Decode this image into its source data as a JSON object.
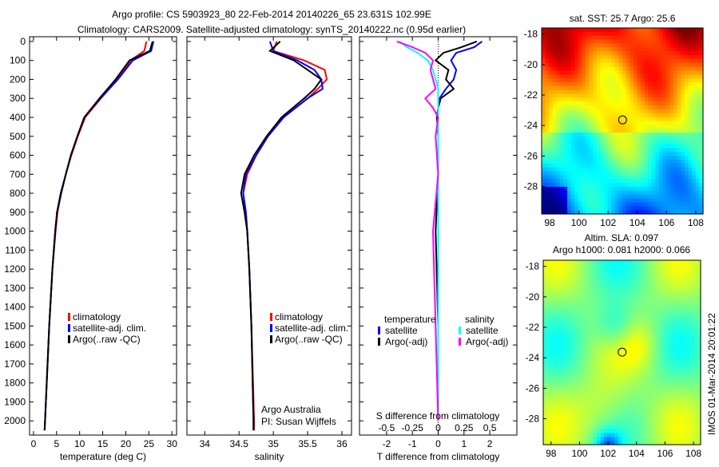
{
  "title_line1": "Argo profile: CS 5903923_80 22-Feb-2014 20140226_65 23.631S 102.99E",
  "title_line2": "Climatology: CARS2009. Satellite-adjusted climatology: synTS_20140222.nc (0.95d earlier)",
  "colors": {
    "climatology": "#ff0000",
    "satellite": "#0000ff",
    "argo": "#000000",
    "sal_satellite": "#00ffff",
    "sal_argo": "#ff00ff"
  },
  "chart_data": [
    {
      "type": "line",
      "name": "temperature",
      "xlabel": "temperature (deg C)",
      "ylabel": "",
      "xlim": [
        -0.85,
        31
      ],
      "ylim": [
        2075,
        -25
      ],
      "xticks": [
        0,
        5,
        10,
        15,
        20,
        25,
        30
      ],
      "yticks": [
        0,
        100,
        200,
        300,
        400,
        500,
        600,
        700,
        800,
        900,
        1000,
        1100,
        1200,
        1300,
        1400,
        1500,
        1600,
        1700,
        1800,
        1900,
        2000
      ],
      "depth": [
        0,
        50,
        100,
        200,
        300,
        400,
        500,
        600,
        700,
        800,
        900,
        1000,
        1200,
        1500,
        2000,
        2050
      ],
      "series": [
        {
          "name": "climatology",
          "values": [
            24.5,
            24,
            21,
            18.2,
            14.6,
            11.2,
            9.6,
            8.2,
            7,
            6,
            5.2,
            4.8,
            4.1,
            3.4,
            2.5,
            2.4
          ]
        },
        {
          "name": "satellite-adj. clim.",
          "values": [
            26,
            25.5,
            21.5,
            18.3,
            14.5,
            11,
            9.5,
            8.1,
            7,
            6,
            5.1,
            4.7,
            4.1,
            3.4,
            2.5,
            2.4
          ]
        },
        {
          "name": "Argo(..raw -QC)",
          "values": [
            25.8,
            25.2,
            20.8,
            17.8,
            14.3,
            11,
            9.5,
            8.1,
            7,
            5.9,
            5.1,
            4.7,
            4.1,
            3.4,
            2.5,
            2.4
          ]
        }
      ],
      "legend": [
        "climatology",
        "satellite-adj. clim.",
        "Argo(..raw -QC)"
      ]
    },
    {
      "type": "line",
      "name": "salinity",
      "xlabel": "salinity",
      "xlim": [
        33.74,
        36.14
      ],
      "ylim": [
        2075,
        -25
      ],
      "xticks": [
        34,
        34.5,
        35,
        35.5,
        36
      ],
      "depth": [
        0,
        50,
        100,
        150,
        200,
        250,
        300,
        400,
        500,
        600,
        700,
        800,
        900,
        1000,
        1200,
        1500,
        2000,
        2050
      ],
      "series": [
        {
          "name": "climatology",
          "values": [
            35.05,
            35.0,
            35.45,
            35.75,
            35.78,
            35.65,
            35.5,
            35.15,
            34.92,
            34.75,
            34.62,
            34.56,
            34.6,
            34.62,
            34.65,
            34.68,
            34.72,
            34.72
          ]
        },
        {
          "name": "satellite-adj. clim.",
          "values": [
            34.95,
            35.0,
            35.35,
            35.6,
            35.7,
            35.72,
            35.5,
            35.15,
            34.92,
            34.75,
            34.6,
            34.56,
            34.6,
            34.62,
            34.65,
            34.68,
            34.71,
            34.71
          ]
        },
        {
          "name": "Argo(..raw -QC)",
          "values": [
            35.1,
            34.95,
            35.3,
            35.5,
            35.7,
            35.6,
            35.45,
            35.12,
            34.9,
            34.72,
            34.58,
            34.53,
            34.58,
            34.62,
            34.65,
            34.68,
            34.71,
            34.71
          ]
        }
      ],
      "legend": [
        "climatology",
        "satellite-adj. clim.",
        "Argo(..raw -QC)"
      ],
      "annotation": [
        "Argo Australia",
        "PI: Susan Wijffels"
      ]
    },
    {
      "type": "line",
      "name": "differences",
      "xlabel": "T difference from climatology",
      "xlabel2": "S difference from climatology",
      "xlim": [
        -3.05,
        3.05
      ],
      "ylim": [
        2075,
        -25
      ],
      "xticks": [
        -2,
        -1,
        0,
        1,
        2
      ],
      "xticks2": [
        "-0.5",
        "-0.25",
        "0",
        "0.25",
        "0.5"
      ],
      "depth": [
        0,
        30,
        60,
        100,
        150,
        200,
        250,
        300,
        350,
        400,
        500,
        700,
        1000,
        1500,
        2000
      ],
      "series": [
        {
          "name": "temperature satellite",
          "values": [
            1.7,
            1.4,
            0.7,
            0.5,
            0.7,
            0.6,
            0.3,
            0.05,
            0,
            0,
            0,
            0,
            0,
            0,
            0
          ]
        },
        {
          "name": "temperature Argo(-adj)",
          "values": [
            1.5,
            0.9,
            0.2,
            -0.1,
            0.4,
            0.3,
            0.6,
            0.1,
            0,
            -0.05,
            0,
            0,
            -0.1,
            0,
            0
          ]
        },
        {
          "name": "salinity satellite",
          "values": [
            -1.5,
            -1.2,
            -0.8,
            -0.4,
            -0.2,
            -0.1,
            0,
            0,
            0,
            0,
            0,
            0,
            0,
            0,
            0
          ]
        },
        {
          "name": "salinity Argo(-adj)",
          "values": [
            -1.6,
            -1.0,
            -0.5,
            -0.2,
            -0.3,
            -0.2,
            -0.1,
            -0.5,
            -0.2,
            0,
            -0.1,
            0,
            -0.2,
            -0.1,
            0
          ]
        }
      ],
      "legend_headers": [
        "temperature",
        "salinity"
      ],
      "legend": [
        "satellite",
        "Argo(-adj)",
        "satellite",
        "Argo(-adj)"
      ]
    },
    {
      "type": "heatmap",
      "name": "sst-map",
      "title": "sat. SST: 25.7  Argo: 25.6",
      "xlim": [
        97.45,
        108.5
      ],
      "ylim": [
        -29.8,
        -17.6
      ],
      "xticks": [
        98,
        100,
        102,
        104,
        106,
        108
      ],
      "yticks": [
        -18,
        -20,
        -22,
        -24,
        -26,
        -28
      ],
      "marker": [
        102.99,
        -23.631
      ]
    },
    {
      "type": "heatmap",
      "name": "sla-map",
      "title": "Altim. SLA: 0.097",
      "subtitle": "Argo h1000: 0.081 h2000: 0.066",
      "xlim": [
        97.45,
        108.5
      ],
      "ylim": [
        -29.7,
        -17.6
      ],
      "xticks": [
        98,
        100,
        102,
        104,
        106,
        108
      ],
      "yticks": [
        -18,
        -20,
        -22,
        -24,
        -26,
        -28
      ],
      "marker": [
        102.99,
        -23.631
      ]
    }
  ],
  "footer_stamp": "IMOS 01-Mar-2014 20:01:22"
}
